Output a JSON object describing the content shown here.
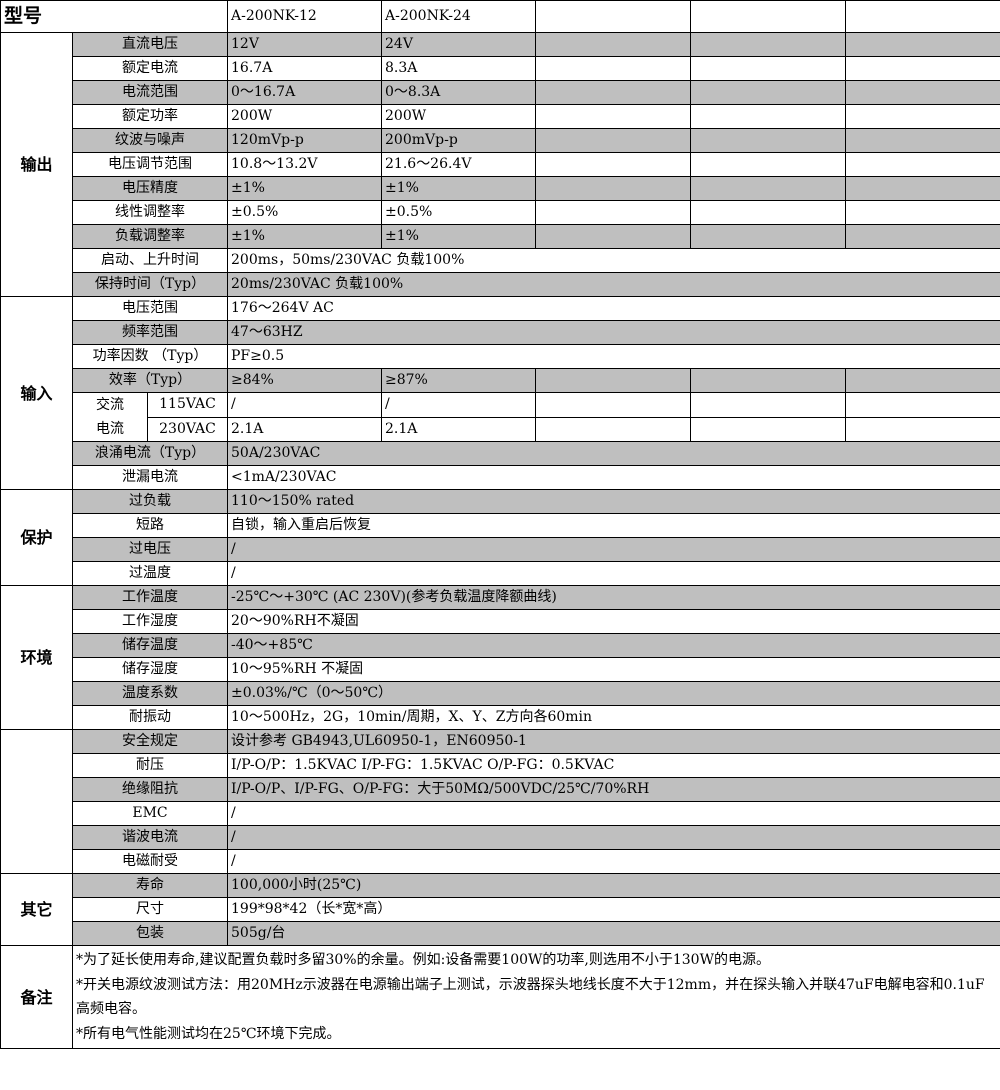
{
  "header": {
    "title": "型号",
    "models": [
      "A-200NK-12",
      "A-200NK-24",
      "",
      "",
      ""
    ]
  },
  "shade_color": "#bfbfbf",
  "sections": [
    {
      "category": "输出",
      "rows": [
        {
          "label": "直流电压",
          "values": [
            "12V",
            "24V",
            "",
            "",
            ""
          ],
          "shaded": true
        },
        {
          "label": "额定电流",
          "values": [
            "16.7A",
            "8.3A",
            "",
            "",
            ""
          ],
          "shaded": false
        },
        {
          "label": "电流范围",
          "values": [
            "0～16.7A",
            "0～8.3A",
            "",
            "",
            ""
          ],
          "shaded": true
        },
        {
          "label": "额定功率",
          "values": [
            "200W",
            "200W",
            "",
            "",
            ""
          ],
          "shaded": false
        },
        {
          "label": "纹波与噪声",
          "values": [
            "120mVp-p",
            "200mVp-p",
            "",
            "",
            ""
          ],
          "shaded": true
        },
        {
          "label": "电压调节范围",
          "values": [
            "10.8～13.2V",
            "21.6～26.4V",
            "",
            "",
            ""
          ],
          "shaded": false
        },
        {
          "label": "电压精度",
          "values": [
            "±1%",
            "±1%",
            "",
            "",
            ""
          ],
          "shaded": true
        },
        {
          "label": "线性调整率",
          "values": [
            "±0.5%",
            "±0.5%",
            "",
            "",
            ""
          ],
          "shaded": false
        },
        {
          "label": "负载调整率",
          "values": [
            "±1%",
            "±1%",
            "",
            "",
            ""
          ],
          "shaded": true
        },
        {
          "label": "启动、上升时间",
          "value": "200ms，50ms/230VAC 负载100%",
          "shaded": false
        },
        {
          "label": "保持时间（Typ）",
          "value": "20ms/230VAC 负载100%",
          "shaded": true
        }
      ]
    },
    {
      "category": "输入",
      "rows": [
        {
          "label": "电压范围",
          "value": "176～264V AC",
          "shaded": false
        },
        {
          "label": "频率范围",
          "value": "47～63HZ",
          "shaded": true
        },
        {
          "label": "功率因数 （Typ）",
          "value": "PF≥0.5",
          "shaded": false
        },
        {
          "label": "效率（Typ）",
          "values": [
            "≥84%",
            "≥87%",
            "",
            "",
            ""
          ],
          "shaded": true
        },
        {
          "label": "交流\n电流",
          "subrows": [
            {
              "sublabel": "115VAC",
              "values": [
                "/",
                "/",
                "",
                "",
                ""
              ],
              "shaded": false
            },
            {
              "sublabel": "230VAC",
              "values": [
                "2.1A",
                "2.1A",
                "",
                "",
                ""
              ],
              "shaded": false
            }
          ]
        },
        {
          "label": "浪涌电流（Typ）",
          "value": "50A/230VAC",
          "shaded": true
        },
        {
          "label": "泄漏电流",
          "value": "<1mA/230VAC",
          "shaded": false
        }
      ]
    },
    {
      "category": "保护",
      "rows": [
        {
          "label": "过负载",
          "value": "110～150% rated",
          "shaded": true
        },
        {
          "label": "短路",
          "value": "自锁，输入重启后恢复",
          "shaded": false
        },
        {
          "label": "过电压",
          "value": "/",
          "shaded": true
        },
        {
          "label": "过温度",
          "value": "/",
          "shaded": false
        }
      ]
    },
    {
      "category": "环境",
      "rows": [
        {
          "label": "工作温度",
          "value": "-25℃～+30℃ (AC 230V)(参考负载温度降额曲线)",
          "shaded": true
        },
        {
          "label": "工作湿度",
          "value": "20～90%RH不凝固",
          "shaded": false
        },
        {
          "label": "储存温度",
          "value": "-40～+85℃",
          "shaded": true
        },
        {
          "label": "储存湿度",
          "value": "10～95%RH 不凝固",
          "shaded": false
        },
        {
          "label": "温度系数",
          "value": "±0.03%/℃（0～50℃）",
          "shaded": true
        },
        {
          "label": "耐振动",
          "value": "10～500Hz，2G，10min/周期，X、Y、Z方向各60min",
          "shaded": false
        }
      ]
    },
    {
      "category": "",
      "rows": [
        {
          "label": "安全规定",
          "value": "设计参考 GB4943,UL60950-1，EN60950-1",
          "shaded": true
        },
        {
          "label": "耐压",
          "value": "I/P-O/P：1.5KVAC I/P-FG：1.5KVAC    O/P-FG：0.5KVAC",
          "shaded": false
        },
        {
          "label": "绝缘阻抗",
          "value": "I/P-O/P、I/P-FG、O/P-FG：大于50MΩ/500VDC/25℃/70%RH",
          "shaded": true
        },
        {
          "label": "EMC",
          "value": "/",
          "shaded": false
        },
        {
          "label": "谐波电流",
          "value": "/",
          "shaded": true
        },
        {
          "label": "电磁耐受",
          "value": "/",
          "shaded": false
        }
      ]
    },
    {
      "category": "其它",
      "rows": [
        {
          "label": "寿命",
          "value": "100,000小时(25℃)",
          "shaded": true
        },
        {
          "label": "尺寸",
          "value": "199*98*42（长*宽*高）",
          "shaded": false
        },
        {
          "label": "包装",
          "value": "505g/台",
          "shaded": true
        }
      ]
    }
  ],
  "notes": {
    "category": "备注",
    "lines": [
      "*为了延长使用寿命,建议配置负载时多留30%的余量。例如:设备需要100W的功率,则选用不小于130W的电源。",
      "*开关电源纹波测试方法：用20MHz示波器在电源输出端子上测试，示波器探头地线长度不大于12mm，并在探头输入并联47uF电解电容和0.1uF高频电容。",
      "*所有电气性能测试均在25℃环境下完成。"
    ]
  }
}
